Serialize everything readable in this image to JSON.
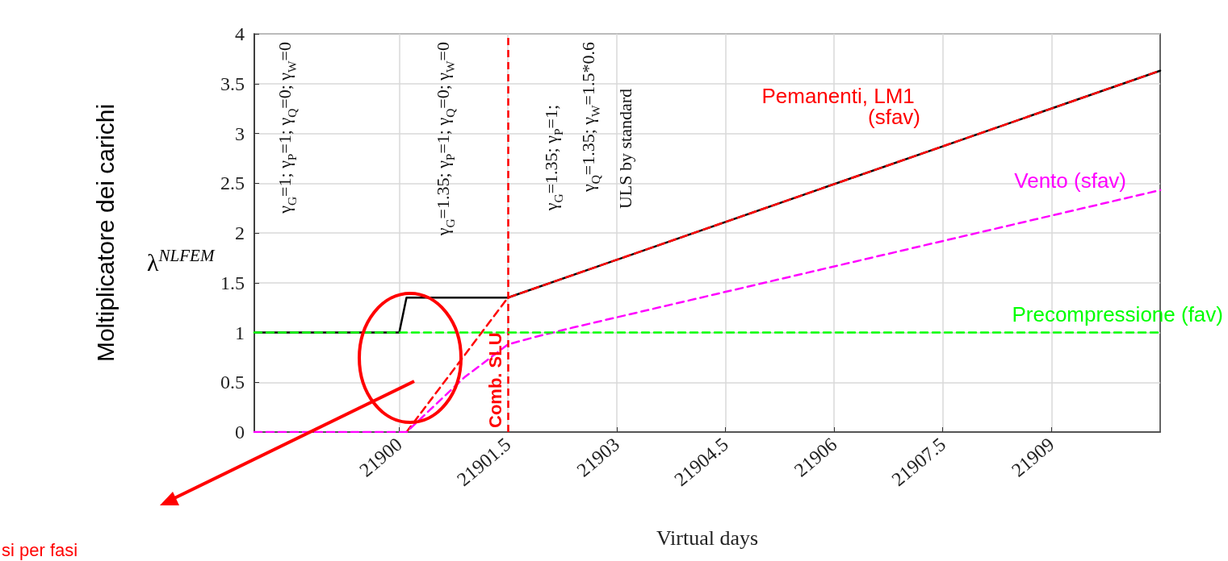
{
  "chart_data": {
    "type": "line",
    "xlabel": "Virtual days",
    "ylabel": "Moltiplicatore dei carichi",
    "xlim": [
      21898,
      21910.5
    ],
    "xticks": [
      21900,
      21901.5,
      21903,
      21904.5,
      21906,
      21907.5,
      21909
    ],
    "ylim": [
      0,
      4
    ],
    "yticks": [
      0,
      0.5,
      1,
      1.5,
      2,
      2.5,
      3,
      3.5,
      4
    ],
    "grid": true,
    "legend": false,
    "marker": "none",
    "series": [
      {
        "color": "#000000",
        "line_style": "solid",
        "x": [
          21898,
          21900,
          21900.1,
          21901.5,
          21910.5
        ],
        "values": [
          1,
          1,
          1.35,
          1.35,
          3.63
        ]
      },
      {
        "name": "Pemanenti, LM1 (sfav)",
        "color": "#ff0000",
        "line_style": "dashed",
        "x": [
          21900.1,
          21901.5,
          21910.5
        ],
        "values": [
          0,
          1.35,
          3.63
        ]
      },
      {
        "name": "Vento (sfav)",
        "color": "#ff00ff",
        "line_style": "dashed",
        "x": [
          21898,
          21900.1,
          21900.9,
          21901.5,
          21901.9,
          21902.4,
          21910.5
        ],
        "values": [
          0,
          0,
          0.55,
          0.88,
          0.96,
          1.05,
          2.43
        ]
      },
      {
        "name": "Precompressione (fav)",
        "color": "#00ff00",
        "line_style": "dashed",
        "x": [
          21898,
          21910.5
        ],
        "values": [
          1,
          1
        ]
      }
    ],
    "ref_lines": [
      {
        "axis": "x",
        "value": 21901.5,
        "label": "Comb. SLU",
        "color": "#ff0000",
        "line_style": "dashed"
      }
    ],
    "annotations": [
      "λ$^{NLFEM}$",
      "si per fasi",
      "γ$_{G}$=1; γ$_{P}$=1; γ$_{Q}$=0; γ$_{W}$=0",
      "γ$_{G}$=1.35; γ$_{P}$=1; γ$_{Q}$=0; γ$_{W}$=0",
      "γ$_{G}$=1.35; γ$_{P}$=1;",
      "γ$_{Q}$=1.35; γ$_{W}$=1.5*0.6",
      "ULS by standard"
    ]
  }
}
